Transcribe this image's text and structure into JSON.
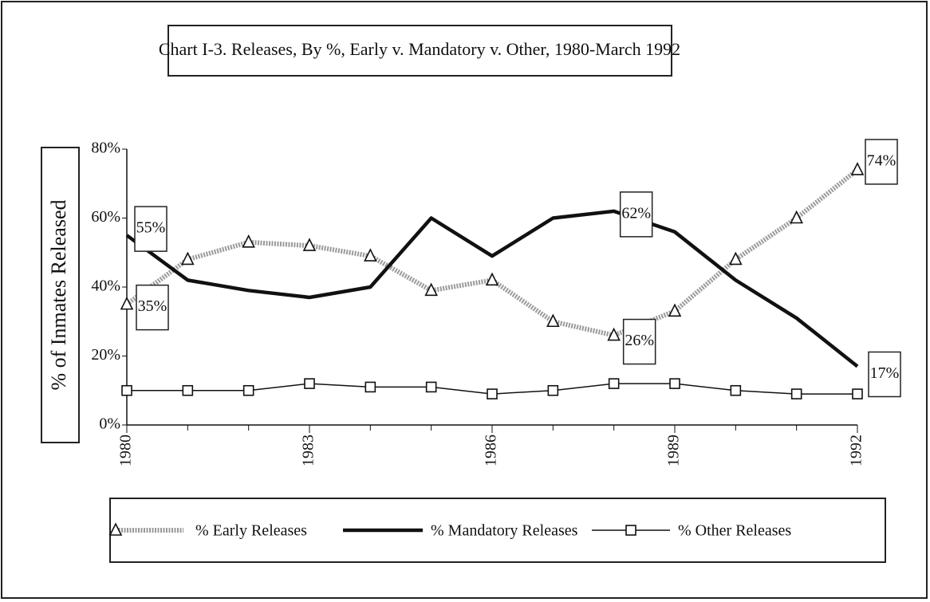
{
  "chart_data": {
    "type": "line",
    "title": "Chart I-3.  Releases, By %, Early v. Mandatory v. Other, 1980-March 1992",
    "y_label": "% of Inmates Released",
    "x": [
      1980,
      1981,
      1982,
      1983,
      1984,
      1985,
      1986,
      1987,
      1988,
      1989,
      1990,
      1991,
      1992
    ],
    "xlim": [
      1980,
      1992
    ],
    "xticks": [
      1980,
      1983,
      1986,
      1989,
      1992
    ],
    "ylim": [
      0,
      80
    ],
    "yticks": [
      {
        "value": 0,
        "label": "0%"
      },
      {
        "value": 20,
        "label": "20%"
      },
      {
        "value": 40,
        "label": "40%"
      },
      {
        "value": 60,
        "label": "60%"
      },
      {
        "value": 80,
        "label": "80%"
      }
    ],
    "grid": false,
    "legend": "bottom",
    "series": [
      {
        "name": "% Early Releases",
        "color": "#9a9a9a",
        "marker": "triangle",
        "values": [
          35,
          48,
          53,
          52,
          49,
          39,
          42,
          30,
          26,
          33,
          48,
          60,
          74
        ],
        "value_labels": [
          "35%",
          null,
          null,
          null,
          null,
          null,
          null,
          null,
          "26%",
          null,
          null,
          null,
          "74%"
        ]
      },
      {
        "name": "% Mandatory Releases",
        "color": "#111111",
        "marker": "none",
        "values": [
          55,
          42,
          39,
          37,
          40,
          60,
          49,
          60,
          62,
          56,
          42,
          31,
          17
        ],
        "value_labels": [
          "55%",
          null,
          null,
          null,
          null,
          null,
          null,
          null,
          "62%",
          null,
          null,
          null,
          "17%"
        ]
      },
      {
        "name": "% Other Releases",
        "color": "#111111",
        "marker": "square",
        "values": [
          10,
          10,
          10,
          12,
          11,
          11,
          9,
          10,
          12,
          12,
          10,
          9,
          9
        ],
        "value_labels": [
          null,
          null,
          null,
          null,
          null,
          null,
          null,
          null,
          null,
          null,
          null,
          null,
          null
        ]
      }
    ]
  }
}
